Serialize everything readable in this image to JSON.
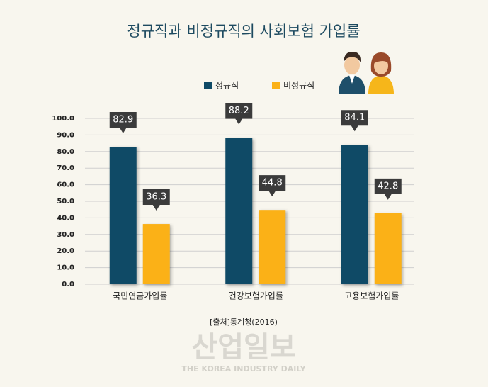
{
  "chart_data": {
    "type": "bar",
    "title": "정규직과 비정규직의 사회보험 가입률",
    "categories": [
      "국민연금가입률",
      "건강보험가입률",
      "고용보험가입률"
    ],
    "series": [
      {
        "name": "정규직",
        "color": "#0f4a66",
        "values": [
          82.9,
          88.2,
          84.1
        ]
      },
      {
        "name": "비정규직",
        "color": "#fbb117",
        "values": [
          36.3,
          44.8,
          42.8
        ]
      }
    ],
    "ylim": [
      0,
      100
    ],
    "yticks": [
      {
        "value": 0,
        "label": "0.0"
      },
      {
        "value": 10,
        "label": "10.0"
      },
      {
        "value": 20,
        "label": "20.0"
      },
      {
        "value": 30,
        "label": "30.0"
      },
      {
        "value": 40,
        "label": "40.0"
      },
      {
        "value": 50,
        "label": "50.0"
      },
      {
        "value": 60,
        "label": "60.0"
      },
      {
        "value": 70,
        "label": "70.0"
      },
      {
        "value": 80,
        "label": "80.0"
      },
      {
        "value": 90,
        "label": "90.0"
      },
      {
        "value": 100,
        "label": "100.0"
      }
    ],
    "grid": true,
    "source": "[출처]통계청(2016)",
    "watermark": "산업일보",
    "watermark_subtitle": "THE KOREA INDUSTRY DAILY"
  }
}
